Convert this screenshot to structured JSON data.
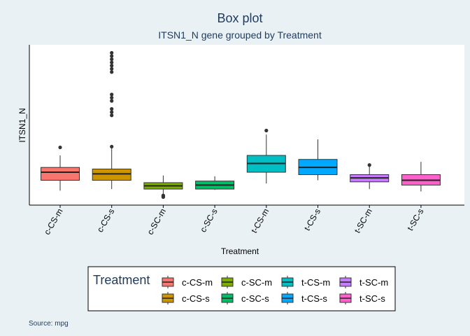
{
  "chart_data": {
    "type": "box",
    "title": "Box plot",
    "subtitle": "ITSN1_N gene grouped by Treatment",
    "xlabel": "Treatment",
    "ylabel": "ITSN1_N",
    "caption": "Source: mpg",
    "ylim": [
      0.0,
      1.0
    ],
    "categories": [
      "c-CS-m",
      "c-CS-s",
      "c-SC-m",
      "c-SC-s",
      "t-CS-m",
      "t-CS-s",
      "t-SC-m",
      "t-SC-s"
    ],
    "colors": [
      "#F8766D",
      "#CD9600",
      "#7CAE00",
      "#00BE67",
      "#00BFC4",
      "#00A9FF",
      "#C77CFF",
      "#FF61CC"
    ],
    "boxes": [
      {
        "name": "c-CS-m",
        "whisker_low": 0.09,
        "q1": 0.155,
        "median": 0.205,
        "q3": 0.235,
        "whisker_high": 0.31,
        "outliers": [
          0.36
        ]
      },
      {
        "name": "c-CS-s",
        "whisker_low": 0.1,
        "q1": 0.155,
        "median": 0.195,
        "q3": 0.225,
        "whisker_high": 0.36,
        "outliers": [
          0.365,
          0.56,
          0.58,
          0.6,
          0.65,
          0.67,
          0.69,
          0.83,
          0.85,
          0.87,
          0.89,
          0.91,
          0.93,
          0.95
        ]
      },
      {
        "name": "c-SC-m",
        "whisker_low": 0.07,
        "q1": 0.1,
        "median": 0.12,
        "q3": 0.14,
        "whisker_high": 0.185,
        "outliers": [
          0.05,
          0.055,
          0.06
        ]
      },
      {
        "name": "c-SC-s",
        "whisker_low": 0.095,
        "q1": 0.1,
        "median": 0.125,
        "q3": 0.15,
        "whisker_high": 0.18,
        "outliers": []
      },
      {
        "name": "t-CS-m",
        "whisker_low": 0.135,
        "q1": 0.205,
        "median": 0.26,
        "q3": 0.31,
        "whisker_high": 0.44,
        "outliers": [
          0.465
        ]
      },
      {
        "name": "t-CS-s",
        "whisker_low": 0.155,
        "q1": 0.19,
        "median": 0.235,
        "q3": 0.285,
        "whisker_high": 0.41,
        "outliers": []
      },
      {
        "name": "t-SC-m",
        "whisker_low": 0.1,
        "q1": 0.145,
        "median": 0.17,
        "q3": 0.19,
        "whisker_high": 0.245,
        "outliers": [
          0.25
        ]
      },
      {
        "name": "t-SC-s",
        "whisker_low": 0.085,
        "q1": 0.125,
        "median": 0.155,
        "q3": 0.19,
        "whisker_high": 0.27,
        "outliers": []
      }
    ],
    "grid": false,
    "legend": {
      "title": "Treatment",
      "position": "bottom",
      "entries": [
        "c-CS-m",
        "c-CS-s",
        "c-SC-m",
        "c-SC-s",
        "t-CS-m",
        "t-CS-s",
        "t-SC-m",
        "t-SC-s"
      ]
    }
  }
}
